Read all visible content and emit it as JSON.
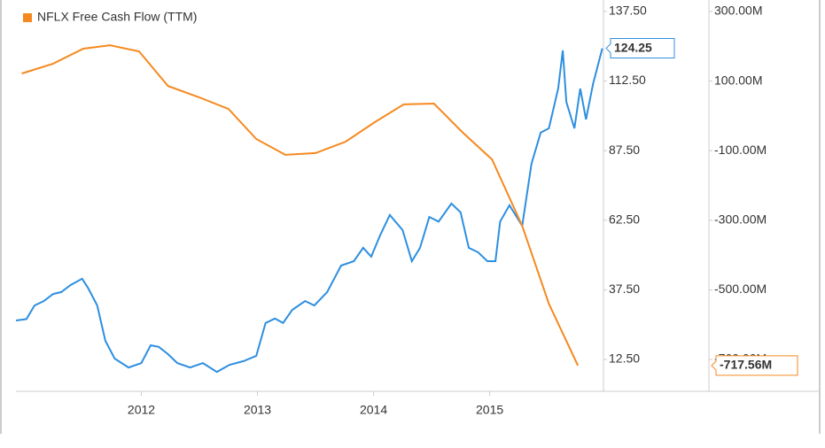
{
  "chart_data": {
    "type": "line",
    "legend": "top-left",
    "xlim": [
      2010.92,
      2015.98
    ],
    "xticks": [
      2012,
      2013,
      2014,
      2015
    ],
    "ylim": [
      1.05,
      141.6
    ],
    "yticks": [
      {
        "value": 137.5,
        "label": "137.50"
      },
      {
        "value": 112.5,
        "label": "112.50"
      },
      {
        "value": 87.5,
        "label": "87.50"
      },
      {
        "value": 62.5,
        "label": "62.50"
      },
      {
        "value": 37.5,
        "label": "37.50"
      },
      {
        "value": 12.5,
        "label": "12.50"
      }
    ],
    "y2lim": [
      -791.6,
      333
    ],
    "y2ticks": [
      {
        "value": 300,
        "label": "300.00M"
      },
      {
        "value": 100,
        "label": "100.00M"
      },
      {
        "value": -100,
        "label": "-100.00M"
      },
      {
        "value": -300,
        "label": "-300.00M"
      },
      {
        "value": -500,
        "label": "-500.00M"
      },
      {
        "value": -700,
        "label": "-700.00M"
      }
    ],
    "series": [
      {
        "color": "#2d8fe0",
        "x": [
          2010.92,
          2011.01,
          2011.08,
          2011.16,
          2011.24,
          2011.31,
          2011.39,
          2011.49,
          2011.54,
          2011.62,
          2011.69,
          2011.77,
          2011.89,
          2012.0,
          2012.08,
          2012.15,
          2012.23,
          2012.31,
          2012.42,
          2012.53,
          2012.65,
          2012.76,
          2012.88,
          2012.99,
          2013.07,
          2013.15,
          2013.22,
          2013.3,
          2013.41,
          2013.49,
          2013.6,
          2013.72,
          2013.83,
          2013.91,
          2013.98,
          2014.06,
          2014.14,
          2014.25,
          2014.33,
          2014.4,
          2014.48,
          2014.56,
          2014.67,
          2014.75,
          2014.82,
          2014.9,
          2014.98,
          2015.05,
          2015.09,
          2015.17,
          2015.28,
          2015.36,
          2015.44,
          2015.51,
          2015.59,
          2015.63,
          2015.66,
          2015.73,
          2015.78,
          2015.83,
          2015.89,
          2015.97
        ],
        "values": [
          26.5,
          27,
          31.9,
          33.5,
          36,
          36.7,
          39.2,
          41.5,
          38.3,
          31.9,
          19.2,
          12.8,
          9.6,
          11.2,
          17.6,
          17,
          14.4,
          11.2,
          9.6,
          11.2,
          8,
          10.6,
          11.9,
          13.8,
          25.6,
          27.2,
          25.6,
          30.3,
          33.5,
          31.9,
          36.7,
          46.2,
          47.8,
          52.6,
          49.4,
          57.4,
          64.4,
          59,
          47.8,
          52.6,
          63.7,
          62,
          68.5,
          65.3,
          52.6,
          51,
          47.8,
          47.8,
          62,
          67.9,
          60.5,
          82.8,
          94,
          95.5,
          109.8,
          123.5,
          105,
          95.5,
          109.8,
          98.7,
          111.4,
          124.25
        ]
      },
      {
        "name": "NFLX Free Cash Flow (TTM)",
        "color": "#f5891f",
        "axis": "y2",
        "x": [
          2010.97,
          2011.24,
          2011.5,
          2011.73,
          2011.98,
          2012.23,
          2012.5,
          2012.75,
          2012.99,
          2013.24,
          2013.5,
          2013.76,
          2014.01,
          2014.26,
          2014.52,
          2014.77,
          2015.02,
          2015.28,
          2015.51,
          2015.76
        ],
        "values": [
          121.9,
          150,
          193,
          203,
          185.5,
          86,
          53,
          20,
          -66.5,
          -112,
          -107,
          -74,
          -18,
          33,
          35.3,
          -48.7,
          -125,
          -316,
          -540,
          -717.56
        ],
        "value_labels": [
          null,
          null,
          null,
          null,
          null,
          null,
          null,
          null,
          null,
          null,
          null,
          null,
          null,
          null,
          null,
          null,
          null,
          null,
          null,
          "-717.56M"
        ]
      }
    ]
  }
}
